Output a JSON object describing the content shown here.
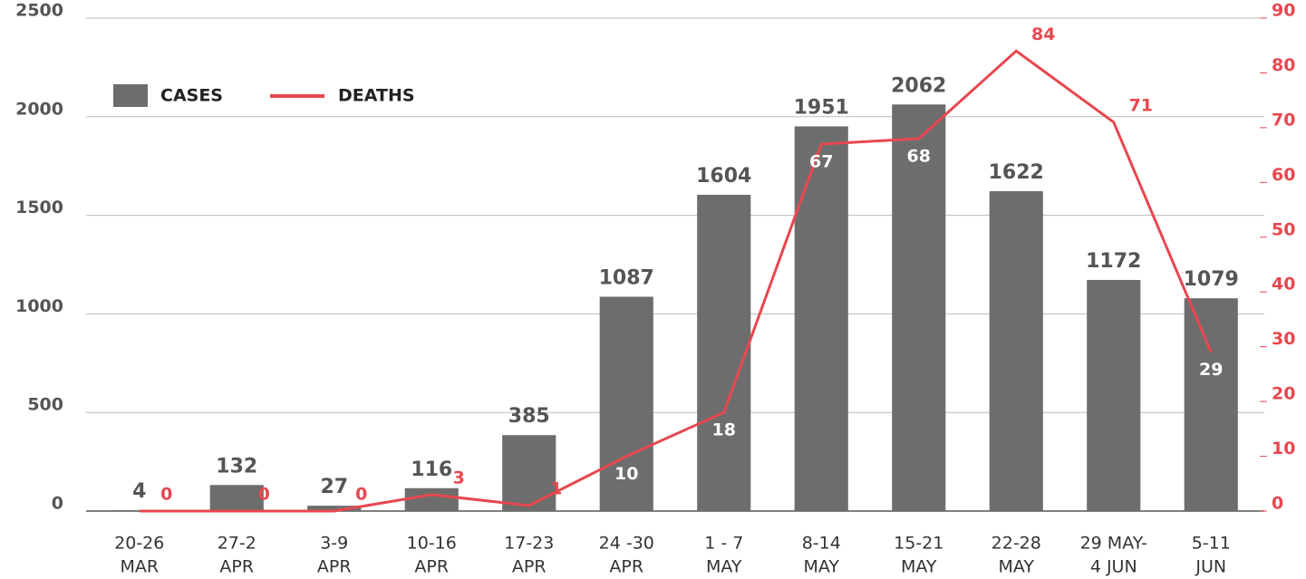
{
  "chart_data": {
    "type": "bar_line",
    "categories": [
      [
        "20-26",
        "MAR"
      ],
      [
        "27-2",
        "APR"
      ],
      [
        "3-9",
        "APR"
      ],
      [
        "10-16",
        "APR"
      ],
      [
        "17-23",
        "APR"
      ],
      [
        "24 -30",
        "APR"
      ],
      [
        "1 - 7",
        "MAY"
      ],
      [
        "8-14",
        "MAY"
      ],
      [
        "15-21",
        "MAY"
      ],
      [
        "22-28",
        "MAY"
      ],
      [
        "29 MAY-",
        "4 JUN"
      ],
      [
        "5-11",
        "JUN"
      ]
    ],
    "series": [
      {
        "name": "CASES",
        "color": "#6d6d6d",
        "type": "bar",
        "values": [
          4,
          132,
          27,
          116,
          385,
          1087,
          1604,
          1951,
          2062,
          1622,
          1172,
          1079
        ]
      },
      {
        "name": "DEATHS",
        "color": "#e8474f",
        "type": "line",
        "axis": "y2",
        "values": [
          0,
          0,
          0,
          3,
          1,
          10,
          18,
          67,
          68,
          84,
          71,
          29
        ]
      }
    ],
    "ylim": [
      0,
      2500
    ],
    "yticks": [
      0,
      500,
      1000,
      1500,
      2000,
      2500
    ],
    "y2lim": [
      0,
      90
    ],
    "y2ticks": [
      0,
      10,
      20,
      30,
      40,
      50,
      60,
      70,
      80,
      90
    ],
    "grid": true,
    "legend": "top-left"
  }
}
